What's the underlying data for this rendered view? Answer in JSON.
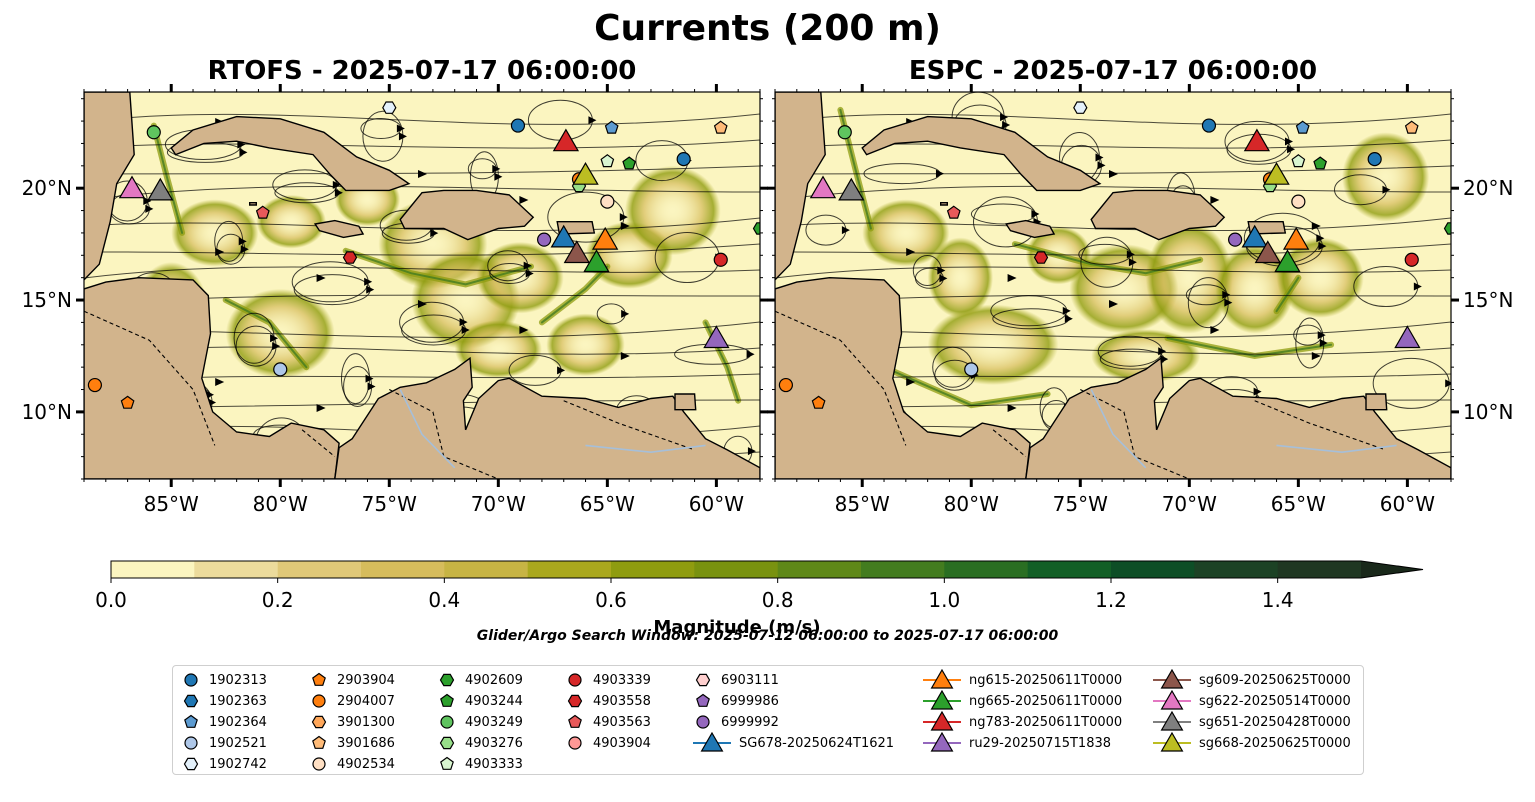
{
  "title": "Currents (200 m)",
  "panels": [
    {
      "title": "RTOFS - 2025-07-17 06:00:00"
    },
    {
      "title": "ESPC - 2025-07-17 06:00:00"
    }
  ],
  "map": {
    "lon_range": [
      -89,
      -58
    ],
    "lat_range": [
      7,
      24.3
    ],
    "lon_ticks": [
      "85°W",
      "80°W",
      "75°W",
      "70°W",
      "65°W",
      "60°W"
    ],
    "lon_tick_values": [
      -85,
      -80,
      -75,
      -70,
      -65,
      -60
    ],
    "lat_ticks": [
      "20°N",
      "15°N",
      "10°N"
    ],
    "lat_tick_values": [
      20,
      15,
      10
    ],
    "colors": {
      "land": "#d2b48c",
      "water": "#9ab9e2",
      "coast": "#000000",
      "river": "#a6bfd9"
    }
  },
  "colorbar": {
    "label": "Magnitude (m/s)",
    "min": 0.0,
    "max": 1.5,
    "step": 0.1,
    "extend": "max",
    "tick_values": [
      0.0,
      0.2,
      0.4,
      0.6,
      0.8,
      1.0,
      1.2,
      1.4
    ],
    "tick_labels": [
      "0.0",
      "0.2",
      "0.4",
      "0.6",
      "0.8",
      "1.0",
      "1.2",
      "1.4"
    ],
    "colors": [
      "#fbf5c0",
      "#ecdb9c",
      "#e0c878",
      "#d6bc5c",
      "#c7b444",
      "#aaa81e",
      "#8f9c10",
      "#799210",
      "#5f8818",
      "#437c1f",
      "#2a6e22",
      "#125f26",
      "#0d4e26",
      "#1c4225",
      "#1f3722",
      "#19281a"
    ]
  },
  "search_window": "Glider/Argo Search Window: 2025-07-12 06:00:00 to 2025-07-17 06:00:00",
  "legend": [
    {
      "label": "1902313",
      "marker": "circle",
      "color": "#1f77b4"
    },
    {
      "label": "1902363",
      "marker": "hexagon",
      "color": "#1f77b4"
    },
    {
      "label": "1902364",
      "marker": "pentagon",
      "color": "#5c9bd1"
    },
    {
      "label": "1902521",
      "marker": "circle",
      "color": "#aec7e8"
    },
    {
      "label": "1902742",
      "marker": "hexagon",
      "color": "#e4f1fb"
    },
    {
      "label": "2903904",
      "marker": "pentagon",
      "color": "#ff7f0e"
    },
    {
      "label": "2904007",
      "marker": "circle",
      "color": "#ff7f0e"
    },
    {
      "label": "3901300",
      "marker": "hexagon",
      "color": "#ffa75a"
    },
    {
      "label": "3901686",
      "marker": "pentagon",
      "color": "#ffbb78"
    },
    {
      "label": "4902534",
      "marker": "circle",
      "color": "#ffe0c4"
    },
    {
      "label": "4902609",
      "marker": "hexagon",
      "color": "#2ca02c"
    },
    {
      "label": "4903244",
      "marker": "pentagon",
      "color": "#2ca02c"
    },
    {
      "label": "4903249",
      "marker": "circle",
      "color": "#5fc45f"
    },
    {
      "label": "4903276",
      "marker": "hexagon",
      "color": "#98df8a"
    },
    {
      "label": "4903333",
      "marker": "pentagon",
      "color": "#d9f5d0"
    },
    {
      "label": "4903339",
      "marker": "circle",
      "color": "#d62728"
    },
    {
      "label": "4903558",
      "marker": "hexagon",
      "color": "#d62728"
    },
    {
      "label": "4903563",
      "marker": "pentagon",
      "color": "#e8595a"
    },
    {
      "label": "4903904",
      "marker": "circle",
      "color": "#ff9896"
    },
    {
      "label": "6903111",
      "marker": "hexagon",
      "color": "#ffd0cf"
    },
    {
      "label": "6999986",
      "marker": "pentagon",
      "color": "#9467bd"
    },
    {
      "label": "6999992",
      "marker": "circle",
      "color": "#9467bd"
    },
    {
      "label": "SG678-20250624T1621",
      "marker": "triangle",
      "color": "#1f77b4",
      "line": true
    },
    {
      "label": "ng615-20250611T0000",
      "marker": "triangle",
      "color": "#ff7f0e",
      "line": true
    },
    {
      "label": "ng665-20250611T0000",
      "marker": "triangle",
      "color": "#2ca02c",
      "line": true
    },
    {
      "label": "ng783-20250611T0000",
      "marker": "triangle",
      "color": "#d62728",
      "line": true
    },
    {
      "label": "ru29-20250715T1838",
      "marker": "triangle",
      "color": "#9467bd",
      "line": true
    },
    {
      "label": "sg609-20250625T0000",
      "marker": "triangle",
      "color": "#8c564b",
      "line": true
    },
    {
      "label": "sg622-20250514T0000",
      "marker": "triangle",
      "color": "#e377c2",
      "line": true
    },
    {
      "label": "sg651-20250428T0000",
      "marker": "triangle",
      "color": "#7f7f7f",
      "line": true
    },
    {
      "label": "sg668-20250625T0000",
      "marker": "triangle",
      "color": "#bcbd22",
      "line": true
    }
  ],
  "argo_positions": [
    {
      "label": "1902313",
      "lon": -69.1,
      "lat": 22.8
    },
    {
      "label": "1902313",
      "lon": -61.5,
      "lat": 21.3
    },
    {
      "label": "1902364",
      "lon": -64.8,
      "lat": 22.7
    },
    {
      "label": "1902521",
      "lon": -80.0,
      "lat": 11.9
    },
    {
      "label": "1902742",
      "lon": -75.0,
      "lat": 23.6
    },
    {
      "label": "2903904",
      "lon": -87.0,
      "lat": 10.4
    },
    {
      "label": "2904007",
      "lon": -88.5,
      "lat": 11.2
    },
    {
      "label": "2904007",
      "lon": -66.3,
      "lat": 20.4
    },
    {
      "label": "3901686",
      "lon": -59.8,
      "lat": 22.7
    },
    {
      "label": "4902534",
      "lon": -65.0,
      "lat": 19.4
    },
    {
      "label": "4902609",
      "lon": -58.0,
      "lat": 18.2
    },
    {
      "label": "4903244",
      "lon": -64.0,
      "lat": 21.1
    },
    {
      "label": "4903249",
      "lon": -85.8,
      "lat": 22.5
    },
    {
      "label": "4903276",
      "lon": -66.3,
      "lat": 20.1
    },
    {
      "label": "4903333",
      "lon": -65.0,
      "lat": 21.2
    },
    {
      "label": "4903339",
      "lon": -59.8,
      "lat": 16.8
    },
    {
      "label": "4903558",
      "lon": -76.8,
      "lat": 16.9
    },
    {
      "label": "4903563",
      "lon": -80.8,
      "lat": 18.9
    },
    {
      "label": "6999992",
      "lon": -67.9,
      "lat": 17.7
    }
  ],
  "glider_positions": [
    {
      "label": "SG678-20250624T1621",
      "lon": -67.0,
      "lat": 17.6
    },
    {
      "label": "ng615-20250611T0000",
      "lon": -65.1,
      "lat": 17.5
    },
    {
      "label": "ng665-20250611T0000",
      "lon": -65.5,
      "lat": 16.5
    },
    {
      "label": "ng783-20250611T0000",
      "lon": -66.9,
      "lat": 21.9
    },
    {
      "label": "ru29-20250715T1838",
      "lon": -60.0,
      "lat": 13.1
    },
    {
      "label": "sg609-20250625T0000",
      "lon": -66.4,
      "lat": 16.9
    },
    {
      "label": "sg622-20250514T0000",
      "lon": -86.8,
      "lat": 19.8
    },
    {
      "label": "sg651-20250428T0000",
      "lon": -85.5,
      "lat": 19.7
    },
    {
      "label": "sg668-20250625T0000",
      "lon": -66.0,
      "lat": 20.4
    }
  ]
}
